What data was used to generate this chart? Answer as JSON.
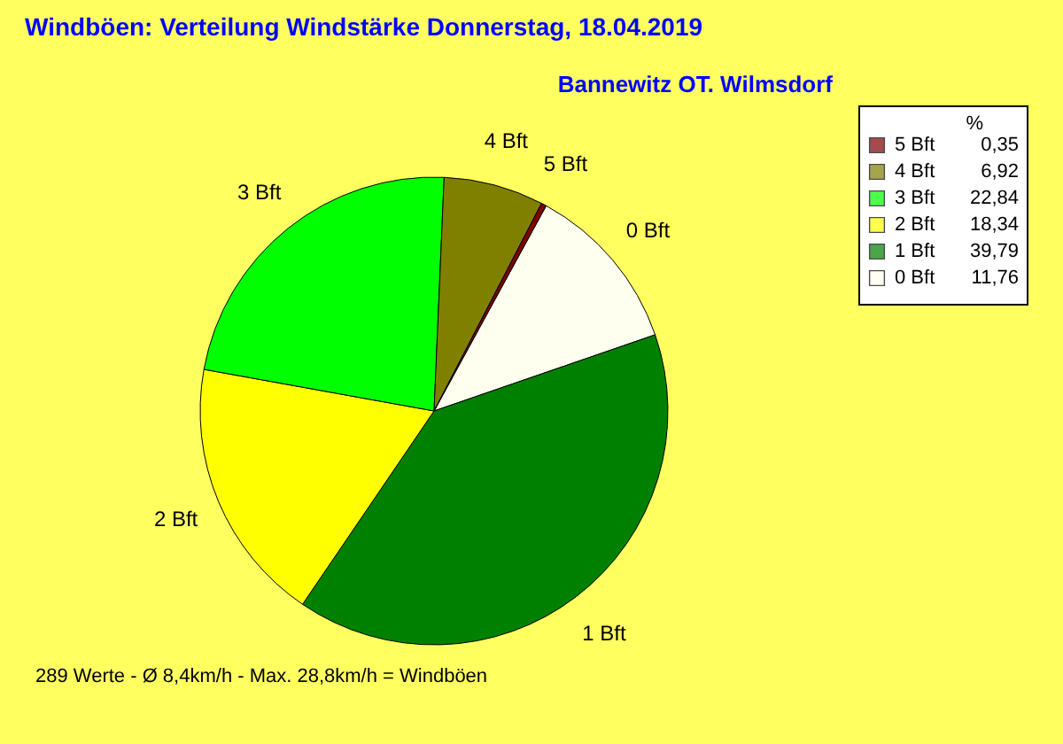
{
  "chart_data": {
    "type": "pie",
    "title": "Windböen: Verteilung Windstärke  Donnerstag, 18.04.2019",
    "subtitle": "Bannewitz OT. Wilmsdorf",
    "legend_title": "%",
    "legend": "right",
    "categories": [
      "0 Bft",
      "1 Bft",
      "2 Bft",
      "3 Bft",
      "4 Bft",
      "5 Bft"
    ],
    "values": [
      11.76,
      39.79,
      18.34,
      22.84,
      6.92,
      0.35
    ],
    "value_labels": [
      "11,76",
      "39,79",
      "18,34",
      "22,84",
      "6,92",
      "0,35"
    ],
    "colors": [
      "#fffff0",
      "#008000",
      "#ffff00",
      "#00ff00",
      "#808000",
      "#800000"
    ],
    "annotations": [
      "289 Werte   -   Ø 8,4km/h   -   Max. 28,8km/h = Windböen"
    ]
  }
}
